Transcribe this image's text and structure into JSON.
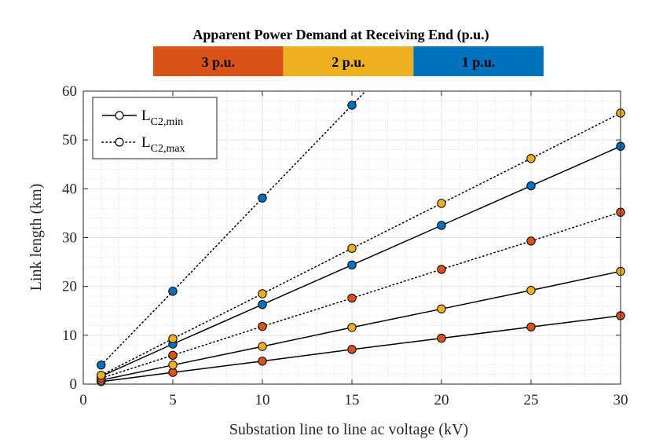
{
  "chart_data": {
    "type": "scatter",
    "banner": {
      "title": "Apparent Power Demand at Receiving End (p.u.)",
      "segments": [
        {
          "label": "3 p.u.",
          "color": "#D95319"
        },
        {
          "label": "2 p.u.",
          "color": "#EDB120"
        },
        {
          "label": "1 p.u.",
          "color": "#0072BD"
        }
      ]
    },
    "xlabel": "Substation line to line ac voltage (kV)",
    "ylabel": "Link length (km)",
    "xlim": [
      0,
      30
    ],
    "ylim": [
      0,
      60
    ],
    "xticks": [
      "0",
      "5",
      "10",
      "15",
      "20",
      "25",
      "30"
    ],
    "yticks": [
      "0",
      "10",
      "20",
      "30",
      "40",
      "50",
      "60"
    ],
    "grid": true,
    "minor_grid": true,
    "legend": {
      "position": "top-left",
      "entries": [
        {
          "main": "L",
          "sub": "C2,min",
          "style": "solid"
        },
        {
          "main": "L",
          "sub": "C2,max",
          "style": "dotted"
        }
      ]
    },
    "x": [
      1,
      5,
      10,
      15,
      20,
      25,
      30
    ],
    "series": [
      {
        "name": "3 p.u. L_C2,min",
        "style": "solid",
        "color": "#D95319",
        "values": [
          0.5,
          2.4,
          4.7,
          7.1,
          9.4,
          11.7,
          14.0
        ]
      },
      {
        "name": "2 p.u. L_C2,min",
        "style": "solid",
        "color": "#EDB120",
        "values": [
          0.8,
          3.9,
          7.7,
          11.6,
          15.4,
          19.2,
          23.1
        ]
      },
      {
        "name": "1 p.u. L_C2,min",
        "style": "solid",
        "color": "#0072BD",
        "values": [
          1.6,
          8.2,
          16.3,
          24.4,
          32.5,
          40.6,
          48.7
        ]
      },
      {
        "name": "3 p.u. L_C2,max",
        "style": "dotted",
        "color": "#D95319",
        "values": [
          1.2,
          5.9,
          11.8,
          17.6,
          23.5,
          29.3,
          35.2
        ]
      },
      {
        "name": "2 p.u. L_C2,max",
        "style": "dotted",
        "color": "#EDB120",
        "values": [
          1.8,
          9.3,
          18.5,
          27.8,
          37.0,
          46.2,
          55.5
        ]
      },
      {
        "name": "1 p.u. L_C2,max",
        "style": "dotted",
        "color": "#0072BD",
        "values": [
          3.9,
          19.0,
          38.1,
          57.1
        ]
      }
    ]
  }
}
